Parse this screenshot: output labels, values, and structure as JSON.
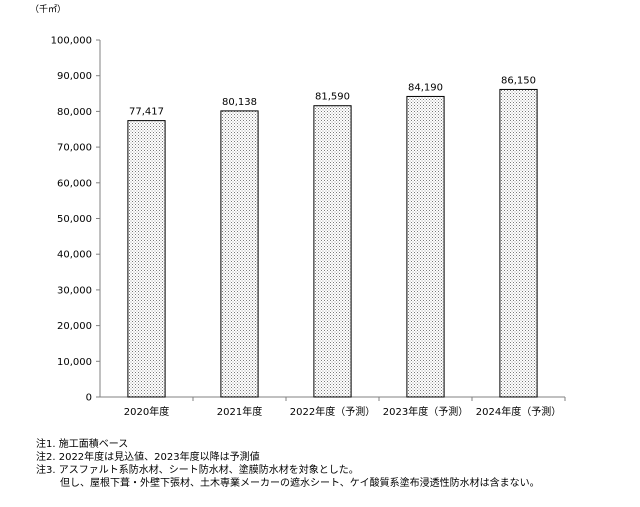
{
  "chart_data": {
    "type": "bar",
    "unit_label": "（千㎡）",
    "categories": [
      "2020年度",
      "2021年度",
      "2022年度（予測）",
      "2023年度（予測）",
      "2024年度（予測）"
    ],
    "values": [
      77417,
      80138,
      81590,
      84190,
      86150
    ],
    "value_labels": [
      "77,417",
      "80,138",
      "81,590",
      "84,190",
      "86,150"
    ],
    "ylim": [
      0,
      100000
    ],
    "yticks": [
      "0",
      "10,000",
      "20,000",
      "30,000",
      "40,000",
      "50,000",
      "60,000",
      "70,000",
      "80,000",
      "90,000",
      "100,000"
    ],
    "ytick_values": [
      0,
      10000,
      20000,
      30000,
      40000,
      50000,
      60000,
      70000,
      80000,
      90000,
      100000
    ],
    "grid": false,
    "bar_fill": "dotted"
  },
  "notes": [
    "注1. 施工面積ベース",
    "注2. 2022年度は見込値、2023年度以降は予測値",
    "注3. アスファルト系防水材、シート防水材、塗膜防水材を対象とした。",
    "但し、屋根下葺・外壁下張材、土木専業メーカーの遮水シート、ケイ酸質系塗布浸透性防水材は含まない。"
  ]
}
